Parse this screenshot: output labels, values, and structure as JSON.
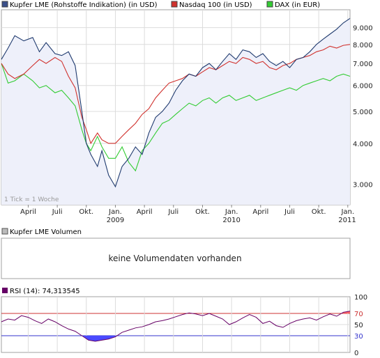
{
  "chart_data": [
    {
      "type": "line",
      "scale": "log",
      "legend_position": "top",
      "grid": true,
      "ylim": [
        2.6,
        10.2
      ],
      "y_ticks": [
        "3.000",
        "4.000",
        "5.000",
        "6.000",
        "7.000",
        "8.000",
        "9.000"
      ],
      "y_tick_values": [
        3,
        4,
        5,
        6,
        7,
        8,
        9
      ],
      "x_range": [
        0,
        156
      ],
      "x_ticks": [
        "April",
        "Juli",
        "Okt.",
        "Jan.",
        "April",
        "Juli",
        "Okt.",
        "Jan.",
        "April",
        "Juli",
        "Okt.",
        "Jan."
      ],
      "x_tick_positions": [
        12,
        25,
        38,
        51,
        64,
        77,
        90,
        103,
        116,
        129,
        142,
        155
      ],
      "year_labels": [
        "2009",
        "2010",
        "2011"
      ],
      "year_label_positions": [
        51,
        103,
        155
      ],
      "note": "1 Tick = 1 Woche",
      "series": [
        {
          "name": "Kupfer LME (Rohstoffe Indikation) (in USD)",
          "color": "#1f3a6e",
          "x": [
            0,
            3,
            6,
            10,
            14,
            17,
            20,
            24,
            27,
            30,
            33,
            36,
            38,
            40,
            43,
            45,
            48,
            51,
            54,
            57,
            60,
            63,
            66,
            69,
            72,
            75,
            78,
            81,
            84,
            87,
            90,
            93,
            96,
            99,
            102,
            105,
            108,
            111,
            114,
            117,
            120,
            123,
            126,
            129,
            132,
            135,
            138,
            141,
            144,
            147,
            150,
            153,
            156
          ],
          "values": [
            7.2,
            7.8,
            8.5,
            8.2,
            8.4,
            7.6,
            8.1,
            7.5,
            7.4,
            7.6,
            6.9,
            5.0,
            4.0,
            3.7,
            3.4,
            3.8,
            3.2,
            2.95,
            3.4,
            3.6,
            3.9,
            3.7,
            4.3,
            4.8,
            5.0,
            5.3,
            5.8,
            6.2,
            6.5,
            6.4,
            6.8,
            7.0,
            6.7,
            7.1,
            7.5,
            7.2,
            7.7,
            7.6,
            7.3,
            7.5,
            7.1,
            6.9,
            7.1,
            6.8,
            7.2,
            7.3,
            7.6,
            8.0,
            8.3,
            8.6,
            8.9,
            9.3,
            9.6
          ]
        },
        {
          "name": "Nasdaq 100 (in USD)",
          "color": "#d0312d",
          "x": [
            0,
            3,
            6,
            10,
            14,
            17,
            20,
            24,
            27,
            30,
            33,
            36,
            38,
            40,
            43,
            45,
            48,
            51,
            54,
            57,
            60,
            63,
            66,
            69,
            72,
            75,
            78,
            81,
            84,
            87,
            90,
            93,
            96,
            99,
            102,
            105,
            108,
            111,
            114,
            117,
            120,
            123,
            126,
            129,
            132,
            135,
            138,
            141,
            144,
            147,
            150,
            153,
            156
          ],
          "values": [
            7.0,
            6.5,
            6.3,
            6.5,
            6.9,
            7.2,
            7.0,
            7.3,
            7.1,
            6.4,
            5.9,
            4.8,
            4.4,
            4.0,
            4.3,
            4.1,
            4.0,
            4.0,
            4.2,
            4.4,
            4.6,
            4.9,
            5.1,
            5.5,
            5.8,
            6.1,
            6.2,
            6.3,
            6.5,
            6.4,
            6.6,
            6.8,
            6.7,
            6.9,
            7.1,
            7.0,
            7.3,
            7.2,
            7.0,
            7.1,
            6.8,
            6.7,
            6.9,
            7.0,
            7.2,
            7.3,
            7.4,
            7.6,
            7.7,
            7.9,
            7.8,
            7.95,
            8.0
          ]
        },
        {
          "name": "DAX (in EUR)",
          "color": "#33cc33",
          "x": [
            0,
            3,
            6,
            10,
            14,
            17,
            20,
            24,
            27,
            30,
            33,
            36,
            38,
            40,
            43,
            45,
            48,
            51,
            54,
            57,
            60,
            63,
            66,
            69,
            72,
            75,
            78,
            81,
            84,
            87,
            90,
            93,
            96,
            99,
            102,
            105,
            108,
            111,
            114,
            117,
            120,
            123,
            126,
            129,
            132,
            135,
            138,
            141,
            144,
            147,
            150,
            153,
            156
          ],
          "values": [
            7.0,
            6.1,
            6.2,
            6.5,
            6.2,
            5.9,
            6.0,
            5.7,
            5.8,
            5.5,
            5.2,
            4.4,
            4.0,
            3.8,
            4.2,
            3.9,
            3.6,
            3.6,
            3.9,
            3.5,
            3.3,
            3.8,
            4.0,
            4.3,
            4.6,
            4.7,
            4.9,
            5.1,
            5.3,
            5.2,
            5.4,
            5.5,
            5.3,
            5.5,
            5.6,
            5.4,
            5.5,
            5.6,
            5.4,
            5.5,
            5.6,
            5.7,
            5.8,
            5.9,
            5.8,
            6.0,
            6.1,
            6.2,
            6.3,
            6.2,
            6.4,
            6.5,
            6.4
          ]
        }
      ]
    },
    {
      "type": "line",
      "title": "Kupfer LME Volumen",
      "message": "keine Volumendaten vorhanden"
    },
    {
      "type": "line",
      "title": "RSI (14): 74,313545",
      "series": [
        {
          "name": "RSI (14)",
          "color": "#660066",
          "x": [
            0,
            3,
            6,
            9,
            12,
            15,
            18,
            21,
            24,
            27,
            30,
            33,
            36,
            39,
            42,
            45,
            48,
            51,
            54,
            57,
            60,
            63,
            66,
            69,
            72,
            75,
            78,
            81,
            84,
            87,
            90,
            93,
            96,
            99,
            102,
            105,
            108,
            111,
            114,
            117,
            120,
            123,
            126,
            129,
            132,
            135,
            138,
            141,
            144,
            147,
            150,
            153,
            156
          ],
          "values": [
            55,
            60,
            58,
            66,
            63,
            57,
            52,
            60,
            55,
            48,
            42,
            38,
            30,
            22,
            20,
            22,
            24,
            28,
            36,
            40,
            44,
            46,
            50,
            55,
            57,
            60,
            64,
            68,
            71,
            69,
            66,
            70,
            65,
            60,
            50,
            55,
            62,
            68,
            63,
            52,
            56,
            48,
            45,
            52,
            57,
            60,
            62,
            58,
            64,
            69,
            65,
            72,
            74
          ]
        }
      ],
      "ylim": [
        0,
        100
      ],
      "y_ticks": [
        "100",
        "70",
        "50",
        "30",
        "0"
      ],
      "y_tick_values": [
        100,
        70,
        50,
        30,
        0
      ],
      "overbought": 70,
      "oversold": 30
    }
  ],
  "colors": {
    "price_fill": "#eef0fa",
    "rsi_over": "#ff6666",
    "rsi_under": "#4a4aff",
    "grid": "#dcdcdc",
    "frame": "#a0a0a0"
  }
}
